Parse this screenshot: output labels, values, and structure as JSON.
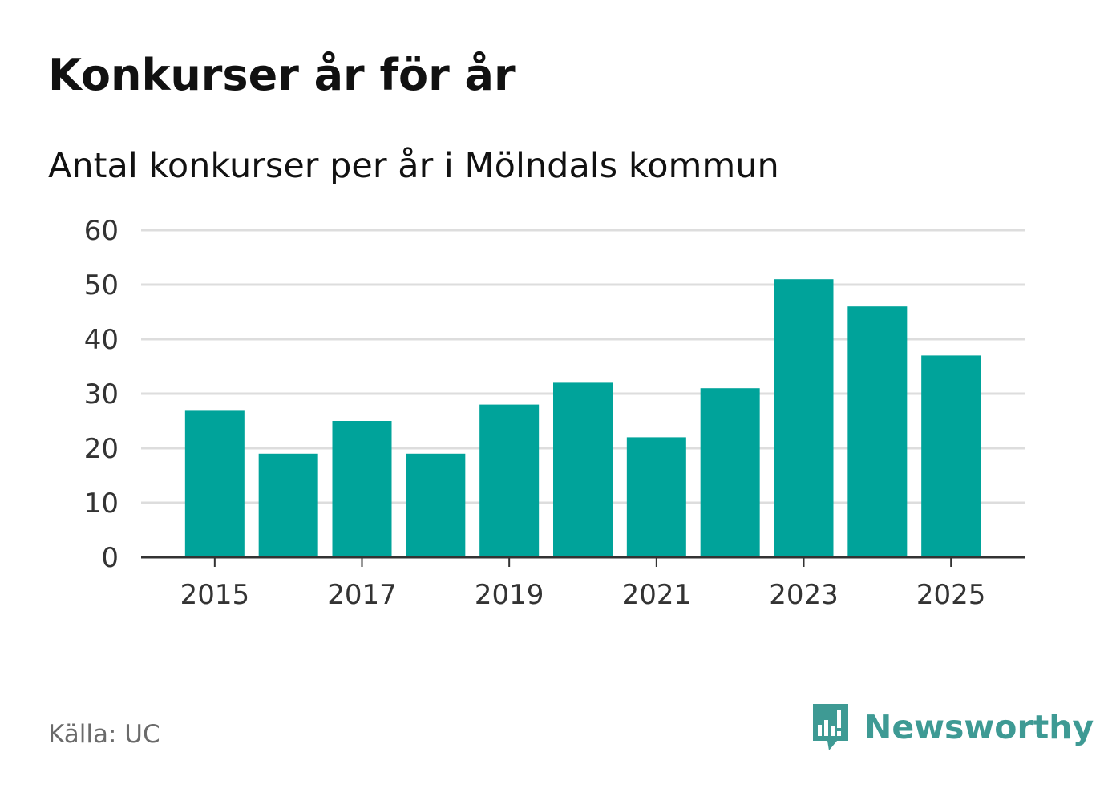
{
  "header": {
    "title": "Konkurser år för år",
    "subtitle": "Antal konkurser per år i Mölndals kommun"
  },
  "footer": {
    "source": "Källa: UC",
    "brand": "Newsworthy"
  },
  "colors": {
    "bar": "#00a39a",
    "grid": "#dddddd",
    "axis": "#333333",
    "brand": "#3e9a94",
    "source": "#6b6b6b"
  },
  "icons": {
    "brand_logo": "newsworthy-chart-bubble-icon"
  },
  "chart_data": {
    "type": "bar",
    "title": "Konkurser år för år",
    "subtitle": "Antal konkurser per år i Mölndals kommun",
    "xlabel": "",
    "ylabel": "",
    "categories": [
      "2015",
      "2016",
      "2017",
      "2018",
      "2019",
      "2020",
      "2021",
      "2022",
      "2023",
      "2024",
      "2025"
    ],
    "values": [
      27,
      19,
      25,
      19,
      28,
      32,
      22,
      31,
      51,
      46,
      37
    ],
    "ylim": [
      0,
      60
    ],
    "yticks": [
      0,
      10,
      20,
      30,
      40,
      50,
      60
    ],
    "xtick_labels": [
      "2015",
      "2017",
      "2019",
      "2021",
      "2023",
      "2025"
    ],
    "grid": true,
    "legend": "none"
  }
}
